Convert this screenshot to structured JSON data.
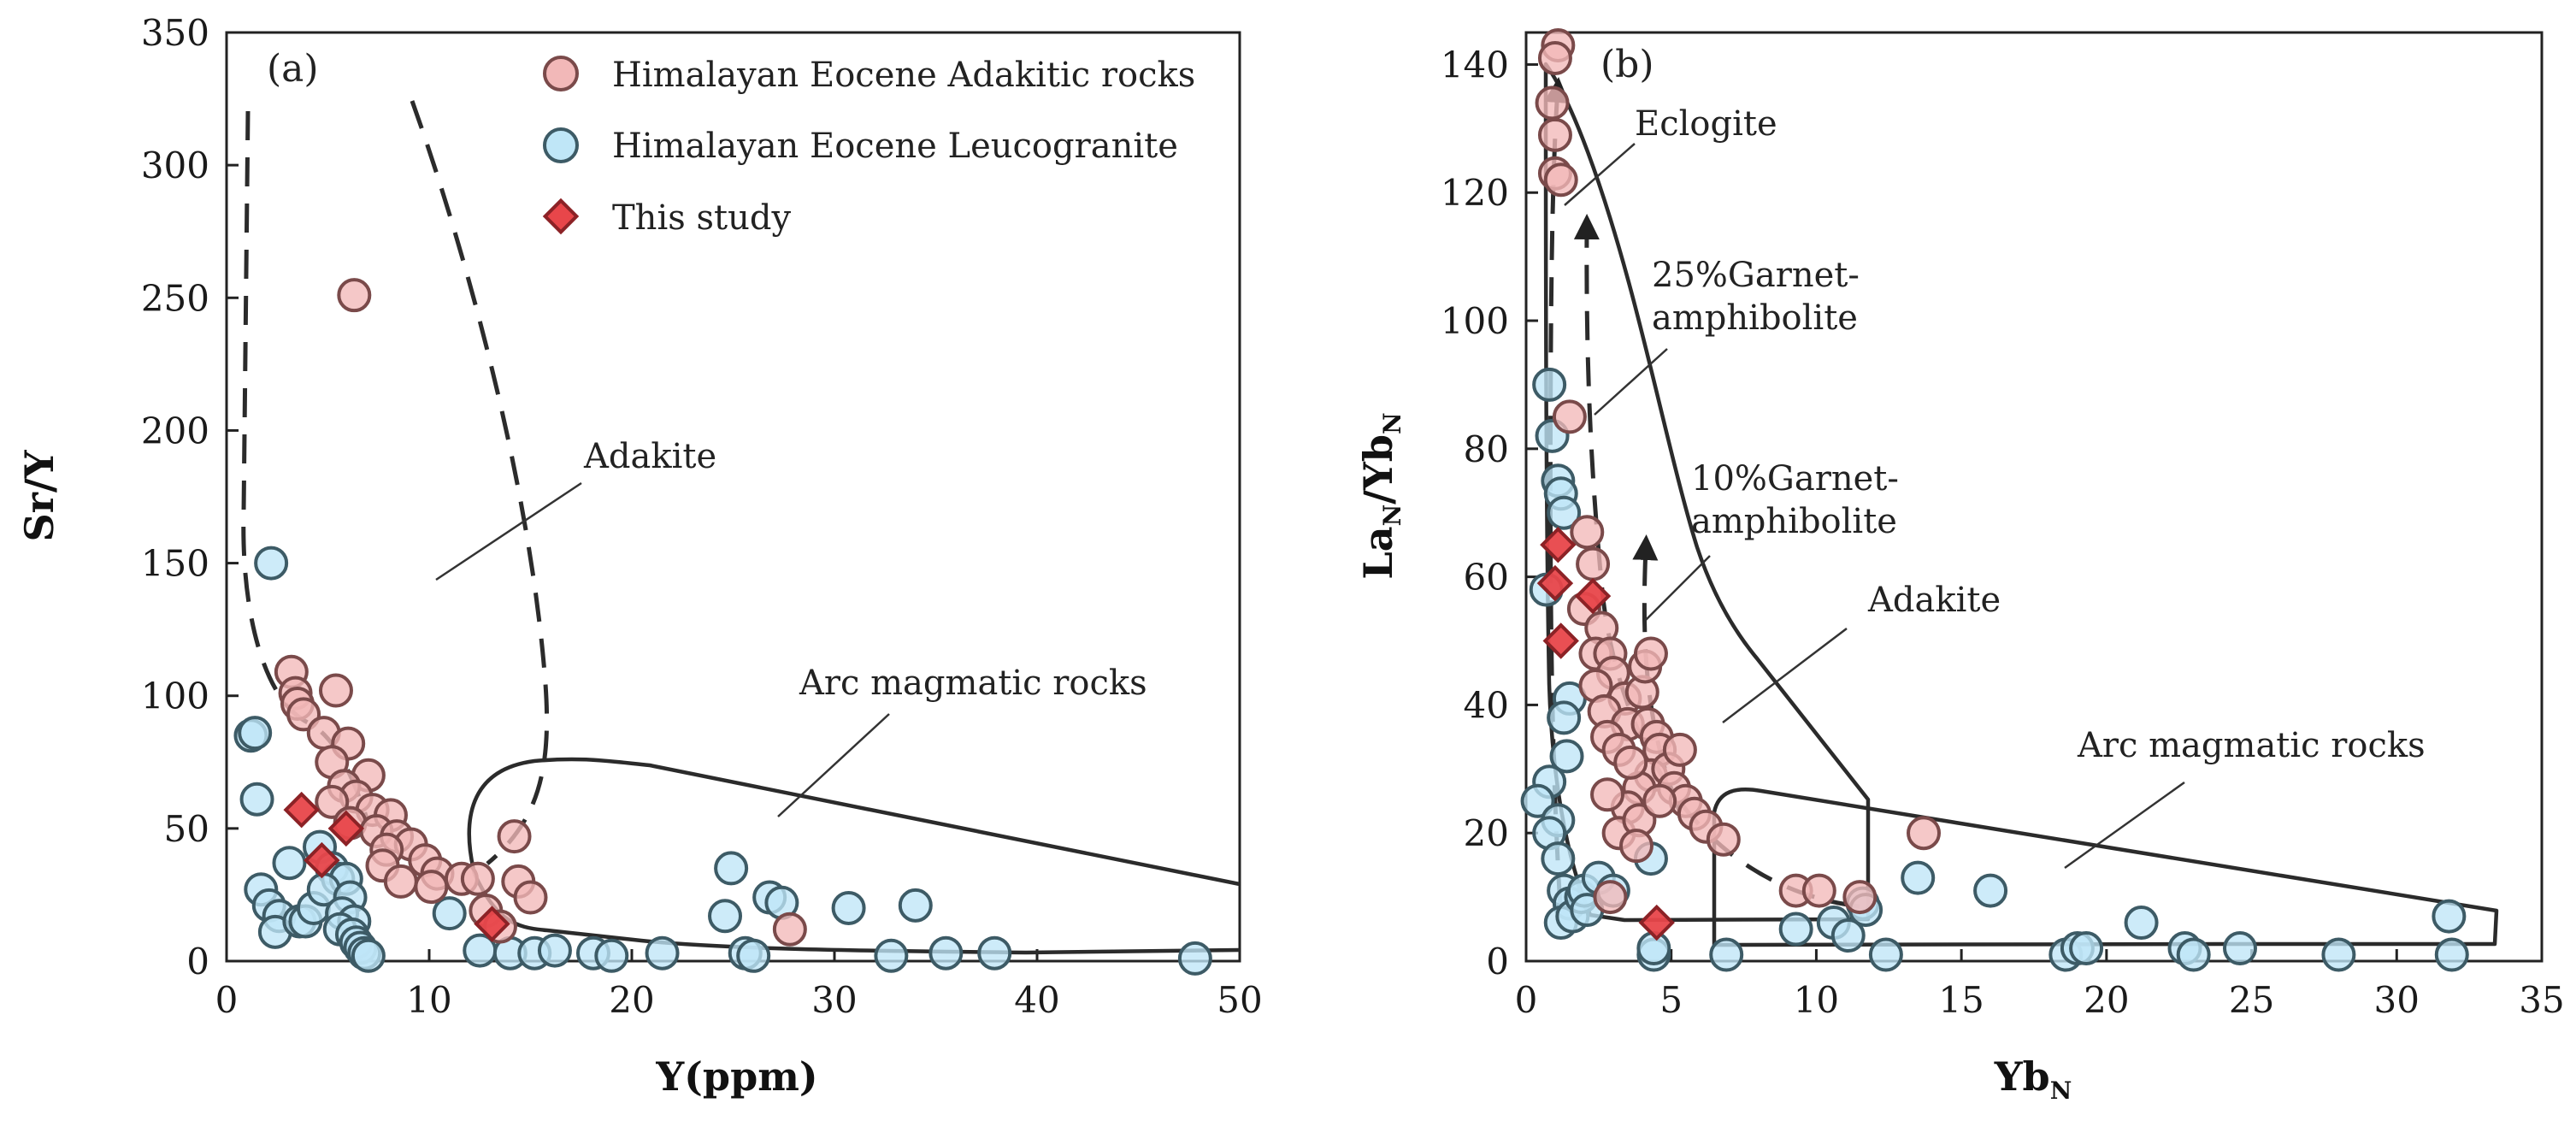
{
  "colors": {
    "adakitic": "#f2b8b8",
    "adakitic_stroke": "#7a4a4a",
    "leucogranite": "#bfe6f7",
    "leucogranite_stroke": "#3d5b66",
    "this_study": "#e8464a",
    "this_study_stroke": "#8c2226"
  },
  "legend": {
    "adakitic": "Himalayan Eocene Adakitic rocks",
    "leucogranite": "Himalayan Eocene Leucogranite",
    "this_study": "This study"
  },
  "panel_a": {
    "label": "(a)",
    "xlabel": "Y(ppm)",
    "ylabel": "Sr/Y",
    "xticks": [
      "0",
      "10",
      "20",
      "30",
      "40",
      "50"
    ],
    "yticks": [
      "0",
      "50",
      "100",
      "150",
      "200",
      "250",
      "300",
      "350"
    ],
    "annotations": {
      "adakite": "Adakite",
      "arc": "Arc magmatic rocks"
    }
  },
  "panel_b": {
    "label": "(b)",
    "xlabel_main": "Yb",
    "xlabel_sub": "N",
    "ylabel_la": "La",
    "ylabel_sub1": "N",
    "ylabel_mid": "/Yb",
    "ylabel_sub2": "N",
    "xticks": [
      "0",
      "5",
      "10",
      "15",
      "20",
      "25",
      "30",
      "35"
    ],
    "yticks": [
      "0",
      "20",
      "40",
      "60",
      "80",
      "100",
      "120",
      "140"
    ],
    "annotations": {
      "eclogite": "Eclogite",
      "garnet25_l1": "25%Garnet-",
      "garnet25_l2": "amphibolite",
      "garnet10_l1": "10%Garnet-",
      "garnet10_l2": "amphibolite",
      "adakite": "Adakite",
      "arc": "Arc magmatic rocks"
    }
  },
  "chart_data": [
    {
      "type": "scatter",
      "title": "(a)",
      "xlabel": "Y(ppm)",
      "ylabel": "Sr/Y",
      "xlim": [
        0,
        50
      ],
      "ylim": [
        0,
        350
      ],
      "series": [
        {
          "name": "Himalayan Eocene Adakitic rocks",
          "marker": "circle",
          "points": [
            [
              6.3,
              251
            ],
            [
              3.2,
              109
            ],
            [
              3.4,
              101
            ],
            [
              5.4,
              102
            ],
            [
              3.5,
              97
            ],
            [
              3.8,
              93
            ],
            [
              4.8,
              86
            ],
            [
              6,
              82
            ],
            [
              5.2,
              75
            ],
            [
              7,
              70
            ],
            [
              5.8,
              66
            ],
            [
              6.4,
              62
            ],
            [
              5.2,
              60
            ],
            [
              7.2,
              57
            ],
            [
              8.1,
              55
            ],
            [
              6.1,
              52
            ],
            [
              7.4,
              49
            ],
            [
              8.4,
              47
            ],
            [
              9.1,
              44
            ],
            [
              7.9,
              42
            ],
            [
              9.8,
              38
            ],
            [
              7.7,
              36
            ],
            [
              10.4,
              33
            ],
            [
              8.6,
              30
            ],
            [
              11.6,
              31
            ],
            [
              12.4,
              31
            ],
            [
              10.1,
              28
            ],
            [
              14.2,
              47
            ],
            [
              14.4,
              30
            ],
            [
              15,
              24
            ],
            [
              12.8,
              19
            ],
            [
              27.8,
              12
            ],
            [
              13.5,
              13
            ]
          ]
        },
        {
          "name": "Himalayan Eocene Leucogranite",
          "marker": "circle",
          "points": [
            [
              2.2,
              150
            ],
            [
              1.2,
              85
            ],
            [
              1.4,
              86
            ],
            [
              1.5,
              61
            ],
            [
              1.7,
              27
            ],
            [
              2.1,
              21
            ],
            [
              2.6,
              17
            ],
            [
              2.4,
              11
            ],
            [
              3.1,
              37
            ],
            [
              3.6,
              15
            ],
            [
              3.9,
              15
            ],
            [
              4.3,
              20
            ],
            [
              4.6,
              43
            ],
            [
              5.2,
              35
            ],
            [
              5.5,
              31
            ],
            [
              5.9,
              31
            ],
            [
              4.8,
              27
            ],
            [
              6.1,
              24
            ],
            [
              5.7,
              18
            ],
            [
              6.3,
              15
            ],
            [
              5.6,
              12
            ],
            [
              6.2,
              10
            ],
            [
              6.4,
              7
            ],
            [
              6.6,
              5
            ],
            [
              6.8,
              3
            ],
            [
              7,
              2
            ],
            [
              11,
              18
            ],
            [
              12.5,
              4
            ],
            [
              14,
              3
            ],
            [
              15.2,
              3
            ],
            [
              16.2,
              4
            ],
            [
              18.1,
              3
            ],
            [
              19,
              2
            ],
            [
              21.5,
              3
            ],
            [
              24.6,
              17
            ],
            [
              24.9,
              35
            ],
            [
              25.6,
              3
            ],
            [
              26,
              2
            ],
            [
              26.8,
              24
            ],
            [
              27.4,
              22
            ],
            [
              30.7,
              20
            ],
            [
              32.8,
              2
            ],
            [
              34,
              21
            ],
            [
              35.5,
              3
            ],
            [
              37.9,
              3
            ],
            [
              47.8,
              1
            ]
          ]
        },
        {
          "name": "This study",
          "marker": "diamond",
          "points": [
            [
              3.7,
              57
            ],
            [
              4.7,
              38
            ],
            [
              5.9,
              50
            ],
            [
              13.1,
              14
            ]
          ]
        }
      ],
      "fields": [
        "Adakite",
        "Arc magmatic rocks"
      ]
    },
    {
      "type": "scatter",
      "title": "(b)",
      "xlabel": "YbN",
      "ylabel": "LaN/YbN",
      "xlim": [
        0,
        35
      ],
      "ylim": [
        0,
        145
      ],
      "series": [
        {
          "name": "Himalayan Eocene Adakitic rocks",
          "marker": "circle",
          "points": [
            [
              1.1,
              143
            ],
            [
              1,
              141
            ],
            [
              0.9,
              134
            ],
            [
              1,
              129
            ],
            [
              1,
              123
            ],
            [
              1.2,
              122
            ],
            [
              1.5,
              85
            ],
            [
              2.1,
              67
            ],
            [
              2.3,
              62
            ],
            [
              2,
              55
            ],
            [
              2.6,
              52
            ],
            [
              2.4,
              48
            ],
            [
              2.9,
              48
            ],
            [
              3,
              45
            ],
            [
              3.4,
              41
            ],
            [
              2.4,
              43
            ],
            [
              2.7,
              39
            ],
            [
              3.5,
              37
            ],
            [
              2.8,
              35
            ],
            [
              3.2,
              33
            ],
            [
              4,
              42
            ],
            [
              4.2,
              37
            ],
            [
              4.5,
              35
            ],
            [
              4.6,
              33
            ],
            [
              4.3,
              29
            ],
            [
              3.9,
              27
            ],
            [
              3.5,
              24
            ],
            [
              2.8,
              26
            ],
            [
              3.2,
              20
            ],
            [
              4.1,
              46
            ],
            [
              3.6,
              31
            ],
            [
              3.9,
              22
            ],
            [
              4.9,
              30
            ],
            [
              5.1,
              27
            ],
            [
              5.5,
              25
            ],
            [
              5.8,
              23
            ],
            [
              6.2,
              21
            ],
            [
              6.8,
              19
            ],
            [
              5.3,
              33
            ],
            [
              4.6,
              25
            ],
            [
              3.8,
              18
            ],
            [
              9.3,
              11
            ],
            [
              10.1,
              11
            ],
            [
              11.5,
              10
            ],
            [
              13.7,
              20
            ],
            [
              2.9,
              10
            ],
            [
              4.3,
              48
            ]
          ]
        },
        {
          "name": "Himalayan Eocene Leucogranite",
          "marker": "circle",
          "points": [
            [
              0.8,
              90
            ],
            [
              0.9,
              82
            ],
            [
              1.1,
              75
            ],
            [
              1.2,
              73
            ],
            [
              1.3,
              70
            ],
            [
              0.7,
              58
            ],
            [
              1.5,
              41
            ],
            [
              1.3,
              38
            ],
            [
              1.4,
              32
            ],
            [
              0.8,
              28
            ],
            [
              0.4,
              25
            ],
            [
              1.1,
              22
            ],
            [
              0.8,
              20
            ],
            [
              1.1,
              16
            ],
            [
              1.3,
              11
            ],
            [
              1.5,
              9
            ],
            [
              1.2,
              6
            ],
            [
              1.6,
              7
            ],
            [
              1.9,
              10
            ],
            [
              2,
              11
            ],
            [
              2.1,
              8
            ],
            [
              2.5,
              13
            ],
            [
              3,
              11
            ],
            [
              4.3,
              16
            ],
            [
              4.4,
              1
            ],
            [
              4.4,
              2
            ],
            [
              6.9,
              1
            ],
            [
              9.3,
              5
            ],
            [
              10.6,
              6
            ],
            [
              11.1,
              4
            ],
            [
              11.6,
              9
            ],
            [
              11.7,
              8
            ],
            [
              12.4,
              1
            ],
            [
              13.5,
              13
            ],
            [
              16,
              11
            ],
            [
              18.6,
              1
            ],
            [
              19,
              2
            ],
            [
              19.3,
              2
            ],
            [
              21.2,
              6
            ],
            [
              22.7,
              2
            ],
            [
              23,
              1
            ],
            [
              24.6,
              2
            ],
            [
              28,
              1
            ],
            [
              31.8,
              7
            ],
            [
              31.9,
              1
            ]
          ]
        },
        {
          "name": "This study",
          "marker": "diamond",
          "points": [
            [
              1.1,
              65
            ],
            [
              1,
              59
            ],
            [
              2.3,
              57
            ],
            [
              1.2,
              50
            ],
            [
              4.5,
              6
            ]
          ]
        }
      ],
      "fields": [
        "Adakite",
        "Arc magmatic rocks"
      ],
      "trends": [
        "Eclogite",
        "25%Garnet-amphibolite",
        "10%Garnet-amphibolite"
      ]
    }
  ]
}
